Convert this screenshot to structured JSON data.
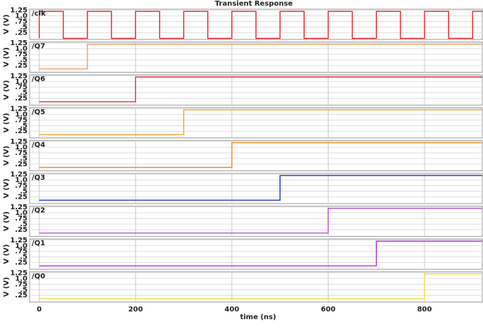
{
  "chart_data": [
    {
      "type": "line",
      "title": "Transient Response",
      "ylabel": "V (V)",
      "xlim": [
        -20,
        920
      ],
      "xticks": [
        0,
        200,
        400,
        600,
        800
      ],
      "ylim": [
        -0.05,
        1.3
      ],
      "yticks": [
        {
          "value": 0.25,
          "label": ".25"
        },
        {
          "value": 0.5,
          "label": ".5"
        },
        {
          "value": 0.75,
          "label": ".75"
        },
        {
          "value": 1.0,
          "label": "1.0"
        },
        1.25
      ],
      "grid": true,
      "series": [
        {
          "name": "/clk",
          "color": "#e8202a",
          "x": [
            0,
            0,
            50,
            50,
            100,
            100,
            150,
            150,
            200,
            200,
            250,
            250,
            300,
            300,
            350,
            350,
            400,
            400,
            450,
            450,
            500,
            500,
            550,
            550,
            600,
            600,
            650,
            650,
            700,
            700,
            750,
            750,
            800,
            800,
            850,
            850,
            900,
            900,
            920
          ],
          "values": [
            0,
            1.2,
            1.2,
            0,
            0,
            1.2,
            1.2,
            0,
            0,
            1.2,
            1.2,
            0,
            0,
            1.2,
            1.2,
            0,
            0,
            1.2,
            1.2,
            0,
            0,
            1.2,
            1.2,
            0,
            0,
            1.2,
            1.2,
            0,
            0,
            1.2,
            1.2,
            0,
            0,
            1.2,
            1.2,
            0,
            0,
            1.2,
            1.2
          ]
        }
      ]
    },
    {
      "type": "line",
      "ylabel": "V (V)",
      "xlim": [
        -20,
        920
      ],
      "xticks": [
        0,
        200,
        400,
        600,
        800
      ],
      "ylim": [
        -0.05,
        1.3
      ],
      "yticks": [
        {
          "value": 0.25,
          "label": ".25"
        },
        {
          "value": 0.5,
          "label": ".5"
        },
        {
          "value": 0.75,
          "label": ".75"
        },
        {
          "value": 1.0,
          "label": "1.0"
        },
        1.25
      ],
      "grid": true,
      "series": [
        {
          "name": "/Q7",
          "color": "#f0a060",
          "x": [
            0,
            100,
            100,
            920
          ],
          "values": [
            0.1,
            0.1,
            1.2,
            1.2
          ]
        }
      ]
    },
    {
      "type": "line",
      "ylabel": "V (V)",
      "xlim": [
        -20,
        920
      ],
      "xticks": [
        0,
        200,
        400,
        600,
        800
      ],
      "ylim": [
        -0.05,
        1.3
      ],
      "yticks": [
        {
          "value": 0.25,
          "label": ".25"
        },
        {
          "value": 0.5,
          "label": ".5"
        },
        {
          "value": 0.75,
          "label": ".75"
        },
        {
          "value": 1.0,
          "label": "1.0"
        },
        1.25
      ],
      "grid": true,
      "series": [
        {
          "name": "/Q6",
          "color": "#e0303a",
          "x": [
            0,
            200,
            200,
            920
          ],
          "values": [
            0.1,
            0.1,
            1.2,
            1.2
          ]
        }
      ]
    },
    {
      "type": "line",
      "ylabel": "V (V)",
      "xlim": [
        -20,
        920
      ],
      "xticks": [
        0,
        200,
        400,
        600,
        800
      ],
      "ylim": [
        -0.05,
        1.3
      ],
      "yticks": [
        {
          "value": 0.25,
          "label": ".25"
        },
        {
          "value": 0.5,
          "label": ".5"
        },
        {
          "value": 0.75,
          "label": ".75"
        },
        {
          "value": 1.0,
          "label": "1.0"
        },
        1.25
      ],
      "grid": true,
      "series": [
        {
          "name": "/Q5",
          "color": "#f5a623",
          "x": [
            0,
            300,
            300,
            920
          ],
          "values": [
            0.1,
            0.1,
            1.2,
            1.2
          ]
        }
      ]
    },
    {
      "type": "line",
      "ylabel": "V (V)",
      "xlim": [
        -20,
        920
      ],
      "xticks": [
        0,
        200,
        400,
        600,
        800
      ],
      "ylim": [
        -0.05,
        1.3
      ],
      "yticks": [
        {
          "value": 0.25,
          "label": ".25"
        },
        {
          "value": 0.5,
          "label": ".5"
        },
        {
          "value": 0.75,
          "label": ".75"
        },
        {
          "value": 1.0,
          "label": "1.0"
        },
        1.25
      ],
      "grid": true,
      "series": [
        {
          "name": "/Q4",
          "color": "#f08a24",
          "x": [
            0,
            400,
            400,
            920
          ],
          "values": [
            0.1,
            0.1,
            1.2,
            1.2
          ]
        }
      ]
    },
    {
      "type": "line",
      "ylabel": "V (V)",
      "xlim": [
        -20,
        920
      ],
      "xticks": [
        0,
        200,
        400,
        600,
        800
      ],
      "ylim": [
        -0.05,
        1.3
      ],
      "yticks": [
        {
          "value": 0.25,
          "label": ".25"
        },
        {
          "value": 0.5,
          "label": ".5"
        },
        {
          "value": 0.75,
          "label": ".75"
        },
        {
          "value": 1.0,
          "label": "1.0"
        },
        1.25
      ],
      "grid": true,
      "series": [
        {
          "name": "/Q3",
          "color": "#2233cc",
          "x": [
            0,
            500,
            500,
            920
          ],
          "values": [
            0.1,
            0.1,
            1.2,
            1.2
          ]
        }
      ]
    },
    {
      "type": "line",
      "ylabel": "V (V)",
      "xlim": [
        -20,
        920
      ],
      "xticks": [
        0,
        200,
        400,
        600,
        800
      ],
      "ylim": [
        -0.05,
        1.3
      ],
      "yticks": [
        {
          "value": 0.25,
          "label": ".25"
        },
        {
          "value": 0.5,
          "label": ".5"
        },
        {
          "value": 0.75,
          "label": ".75"
        },
        {
          "value": 1.0,
          "label": "1.0"
        },
        1.25
      ],
      "grid": true,
      "series": [
        {
          "name": "/Q2",
          "color": "#b050d0",
          "x": [
            0,
            600,
            600,
            920
          ],
          "values": [
            0.1,
            0.1,
            1.2,
            1.2
          ]
        }
      ]
    },
    {
      "type": "line",
      "ylabel": "V (V)",
      "xlim": [
        -20,
        920
      ],
      "xticks": [
        0,
        200,
        400,
        600,
        800
      ],
      "ylim": [
        -0.05,
        1.3
      ],
      "yticks": [
        {
          "value": 0.25,
          "label": ".25"
        },
        {
          "value": 0.5,
          "label": ".5"
        },
        {
          "value": 0.75,
          "label": ".75"
        },
        {
          "value": 1.0,
          "label": "1.0"
        },
        1.25
      ],
      "grid": true,
      "series": [
        {
          "name": "/Q1",
          "color": "#b030e0",
          "x": [
            0,
            700,
            700,
            920
          ],
          "values": [
            0.1,
            0.1,
            1.2,
            1.2
          ]
        }
      ]
    },
    {
      "type": "line",
      "ylabel": "V (V)",
      "xlabel": "time (ns)",
      "xlim": [
        -20,
        920
      ],
      "xticks": [
        0,
        200,
        400,
        600,
        800
      ],
      "ylim": [
        -0.05,
        1.3
      ],
      "yticks": [
        {
          "value": 0.25,
          "label": ".25"
        },
        {
          "value": 0.5,
          "label": ".5"
        },
        {
          "value": 0.75,
          "label": ".75"
        },
        {
          "value": 1.0,
          "label": "1.0"
        },
        1.25
      ],
      "grid": true,
      "series": [
        {
          "name": "/Q0",
          "color": "#f0e040",
          "x": [
            0,
            800,
            800,
            920
          ],
          "values": [
            0.1,
            0.1,
            1.2,
            1.2
          ]
        }
      ]
    }
  ]
}
